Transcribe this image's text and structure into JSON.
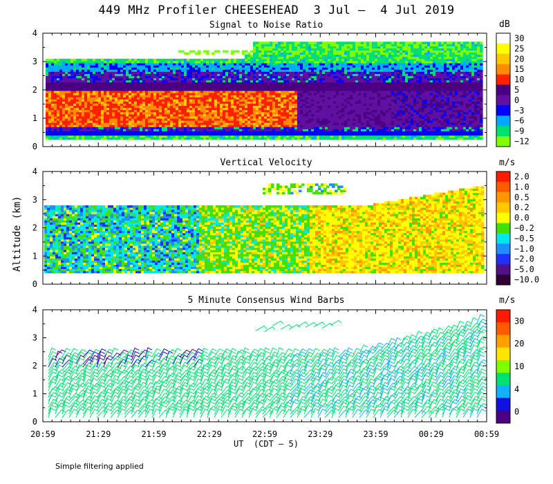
{
  "title": "449 MHz Profiler CHEESEHEAD  3 Jul –  4 Jul 2019",
  "ylabel": "Altitude (km)",
  "xunit": "UT  (CDT – 5)",
  "footnote": "Simple filtering applied",
  "chart_data": [
    {
      "type": "heatmap",
      "title": "Signal to Noise Ratio",
      "unit": "dB",
      "ylim": [
        0,
        4
      ],
      "yticks": [
        "0",
        "1",
        "2",
        "3",
        "4"
      ],
      "xticks": [
        "20:59",
        "21:29",
        "21:59",
        "22:29",
        "22:59",
        "23:29",
        "23:59",
        "00:29",
        "00:59"
      ],
      "colorbar": {
        "labels": [
          "30",
          "25",
          "20",
          "15",
          "10",
          "5",
          "0",
          "−3",
          "−6",
          "−9",
          "−12"
        ],
        "colors": [
          "#ffffff",
          "#ffff00",
          "#ffc800",
          "#ff8c00",
          "#ff2000",
          "#4b0082",
          "#6010a0",
          "#0000ff",
          "#00aaff",
          "#00e070",
          "#80ff00"
        ]
      },
      "layers": [
        {
          "from": 0.25,
          "to": 0.35,
          "level": "−9"
        },
        {
          "from": 0.35,
          "to": 0.5,
          "level": "−3"
        },
        {
          "from": 0.5,
          "to": 0.65,
          "level": "0"
        },
        {
          "from": 0.65,
          "to": 1.9,
          "level": "10"
        },
        {
          "from": 1.9,
          "to": 2.2,
          "level": "5"
        },
        {
          "from": 2.2,
          "to": 2.6,
          "level": "0"
        },
        {
          "from": 2.6,
          "to": 2.9,
          "level": "−6"
        },
        {
          "from": 2.9,
          "to": 3.2,
          "level": "−9"
        }
      ]
    },
    {
      "type": "heatmap",
      "title": "Vertical Velocity",
      "unit": "m/s",
      "ylim": [
        0,
        4
      ],
      "yticks": [
        "0",
        "1",
        "2",
        "3",
        "4"
      ],
      "xticks": [
        "20:59",
        "21:29",
        "21:59",
        "22:29",
        "22:59",
        "23:29",
        "23:59",
        "00:29",
        "00:59"
      ],
      "colorbar": {
        "labels": [
          "2.0",
          "1.0",
          "0.5",
          "0.2",
          "0.0",
          "−0.2",
          "−0.5",
          "−1.0",
          "−2.0",
          "−5.0",
          "−10.0"
        ],
        "colors": [
          "#ff1a00",
          "#ff5a00",
          "#ff9600",
          "#ffc800",
          "#ffff00",
          "#44e000",
          "#00e8e8",
          "#1f8fff",
          "#2030ff",
          "#50108a",
          "#300030"
        ]
      },
      "segments": [
        {
          "t_start": "20:59",
          "t_end": "22:10",
          "dominant": "−0.5",
          "alt": [
            0.4,
            2.8
          ]
        },
        {
          "t_start": "22:10",
          "t_end": "23:30",
          "dominant": "−0.2",
          "alt": [
            0.4,
            2.8
          ]
        },
        {
          "t_start": "23:30",
          "t_end": "00:59",
          "dominant": "0.0",
          "alt": [
            0.4,
            3.5
          ]
        }
      ]
    },
    {
      "type": "scatter",
      "title": "5 Minute Consensus Wind Barbs",
      "unit": "m/s",
      "ylim": [
        0,
        4
      ],
      "yticks": [
        "0",
        "1",
        "2",
        "3",
        "4"
      ],
      "xticks": [
        "20:59",
        "21:29",
        "21:59",
        "22:29",
        "22:59",
        "23:29",
        "23:59",
        "00:29",
        "00:59"
      ],
      "colorbar": {
        "labels": [
          "30",
          "20",
          "10",
          "4",
          "0"
        ],
        "colors": [
          "#ff1a00",
          "#ff5a00",
          "#ffa000",
          "#ffe600",
          "#80ff00",
          "#00e070",
          "#10b0ff",
          "#1010e0",
          "#4b0082"
        ]
      },
      "dominant_speed_class": "10",
      "alt_range": [
        0.1,
        3.6
      ]
    }
  ]
}
